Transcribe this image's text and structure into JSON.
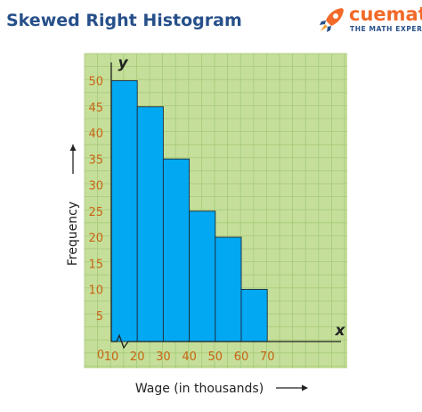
{
  "page": {
    "title": "Skewed Right Histogram"
  },
  "logo": {
    "brand": "cuemath",
    "tagline": "THE MATH EXPERT",
    "icon": "rocket-icon"
  },
  "colors": {
    "plot_background": "#c5df9a",
    "grid_line": "#a6c978",
    "bar_fill": "#02a8f2",
    "bar_stroke": "#1c2d3c",
    "tick_label": "#c86414",
    "title": "#27508a",
    "brand": "#f26a29"
  },
  "chart_data": {
    "type": "bar",
    "title": "Skewed Right Histogram",
    "xlabel": "Wage (in thousands)",
    "ylabel": "Frequency",
    "x_axis_letter": "x",
    "y_axis_letter": "y",
    "origin_label": "0",
    "bins": [
      {
        "start": 10,
        "end": 20,
        "value": 50
      },
      {
        "start": 20,
        "end": 30,
        "value": 45
      },
      {
        "start": 30,
        "end": 40,
        "value": 35
      },
      {
        "start": 40,
        "end": 50,
        "value": 25
      },
      {
        "start": 50,
        "end": 60,
        "value": 20
      },
      {
        "start": 60,
        "end": 70,
        "value": 10
      }
    ],
    "x_ticks": [
      "10",
      "20",
      "30",
      "40",
      "50",
      "60",
      "70"
    ],
    "y_ticks": [
      "5",
      "10",
      "15",
      "20",
      "25",
      "30",
      "35",
      "40",
      "45",
      "50"
    ],
    "xlim": [
      0,
      80
    ],
    "ylim": [
      0,
      55
    ],
    "grid": true,
    "axis_break": true
  }
}
